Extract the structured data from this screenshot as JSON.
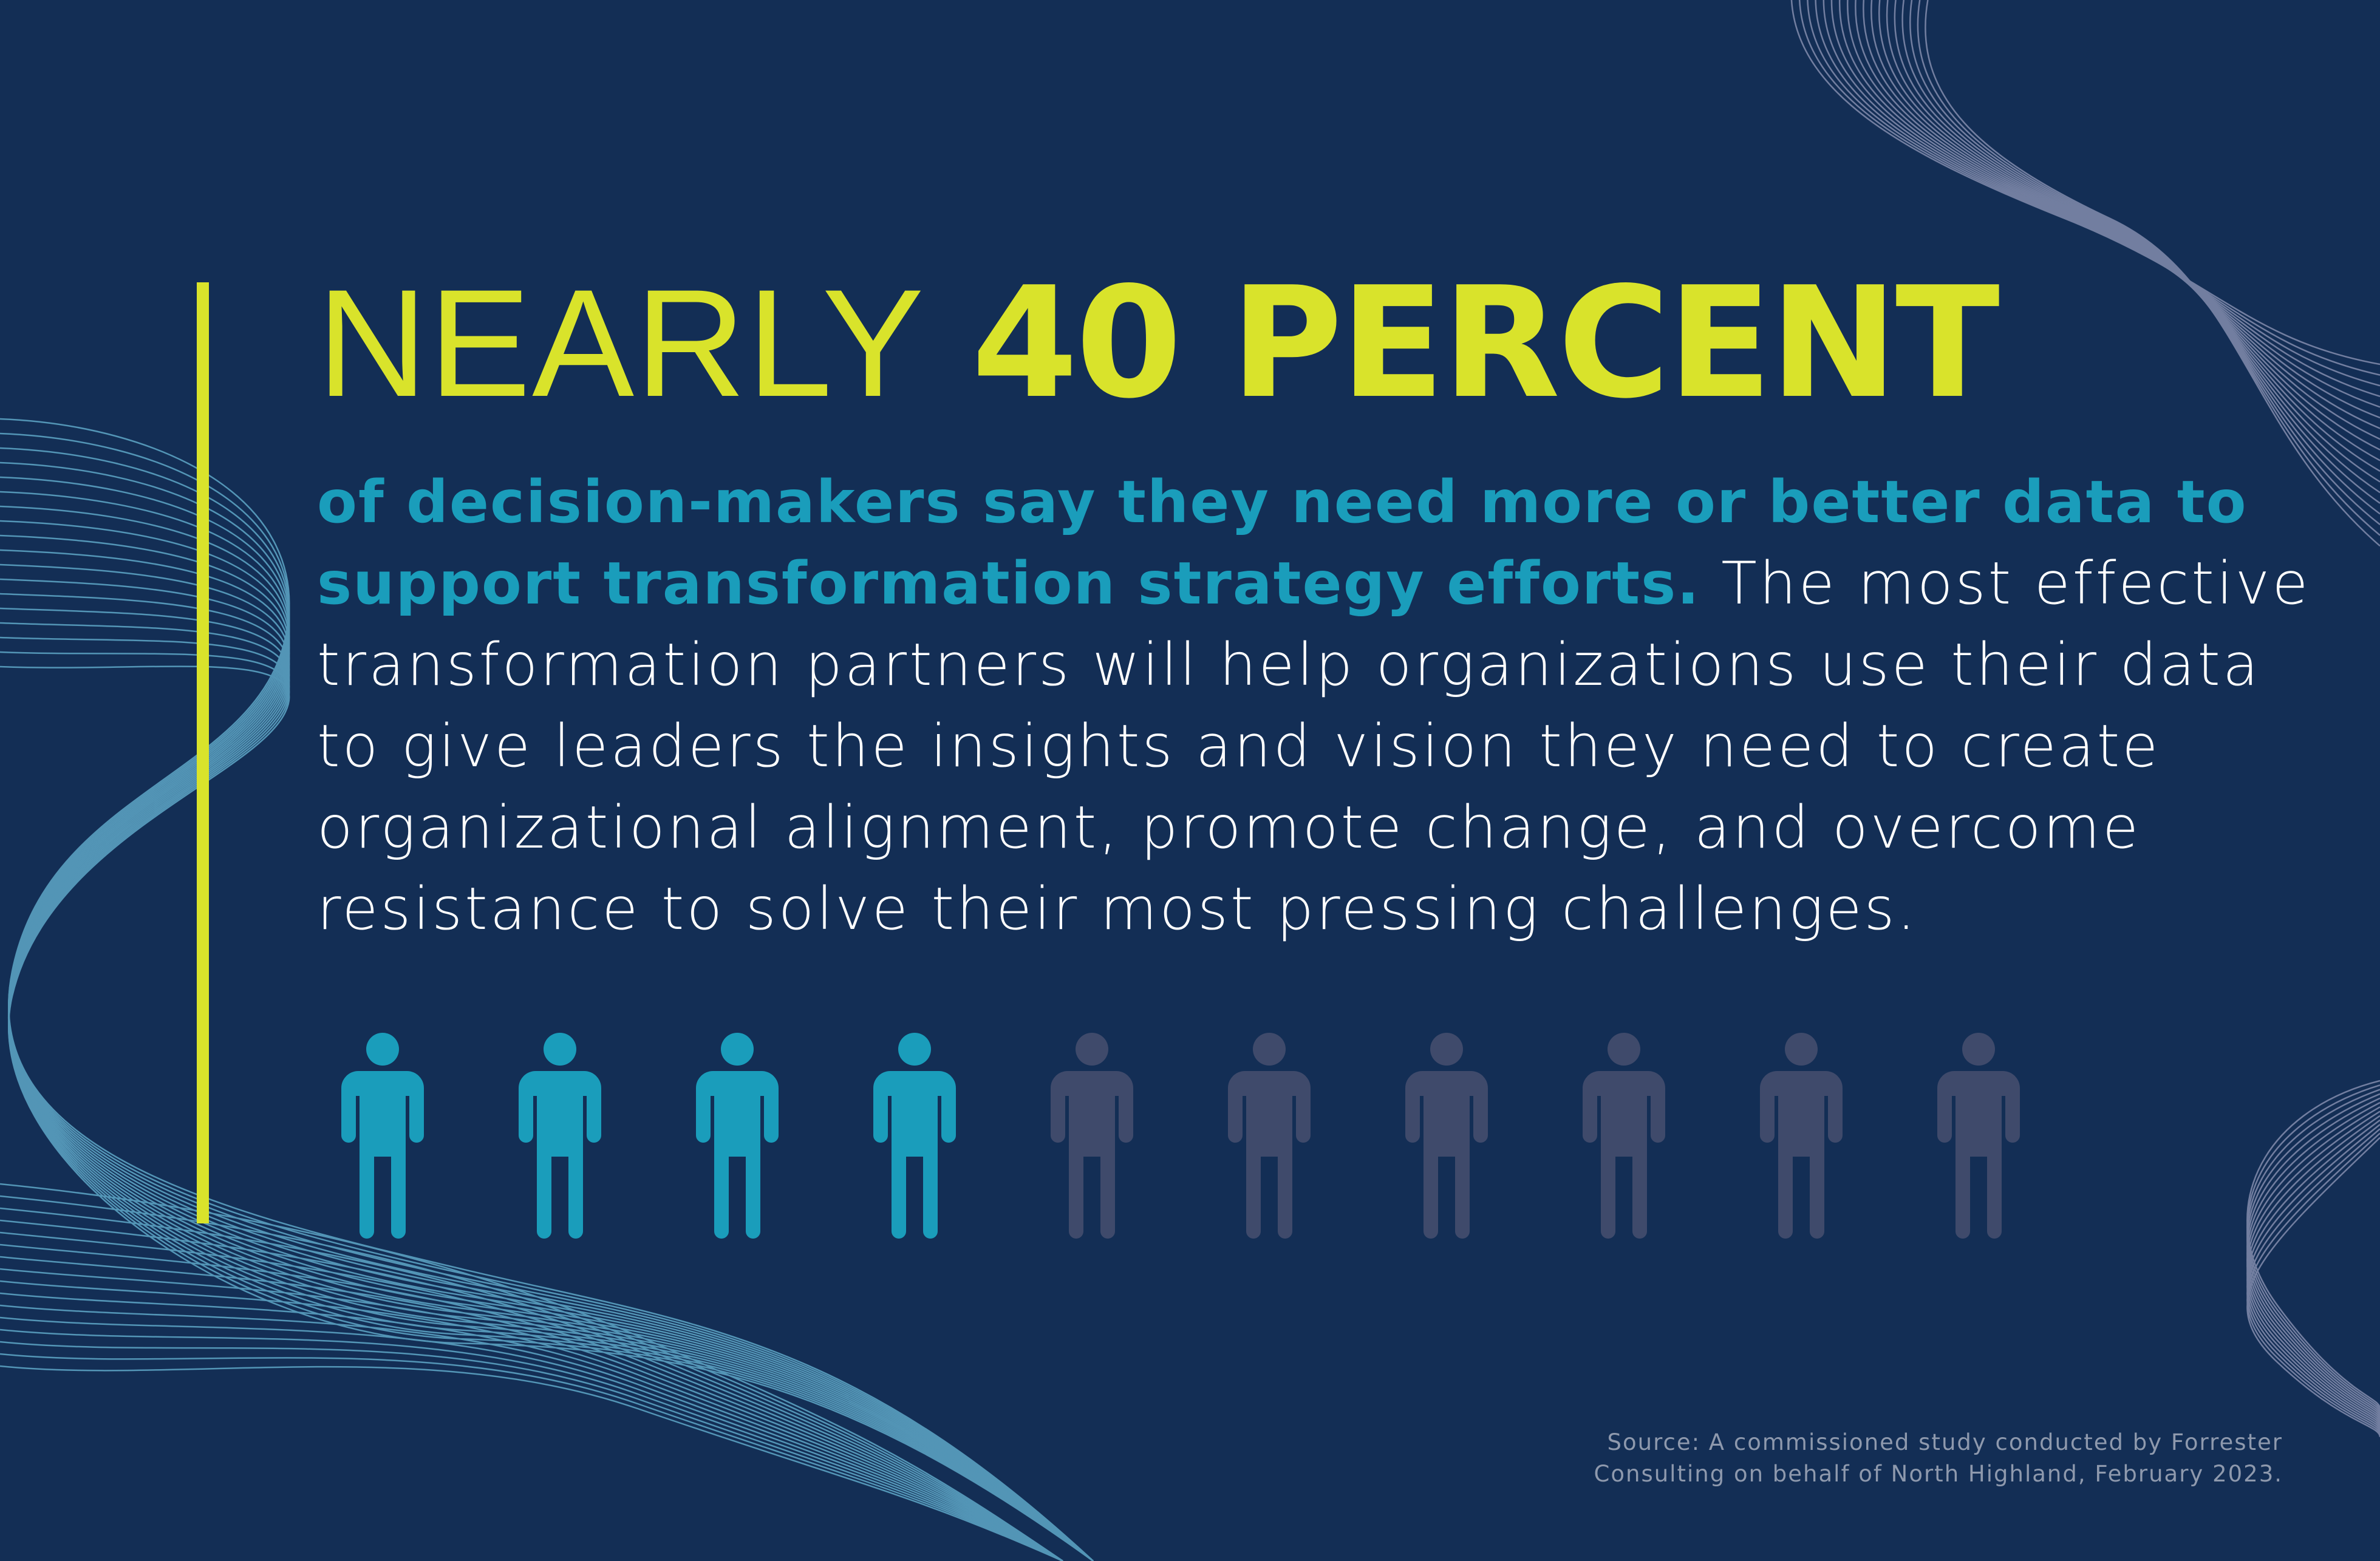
{
  "headline": {
    "light": "NEARLY",
    "bold": "40 PERCENT"
  },
  "body": {
    "highlight": "of decision-makers say they need more or better data to support transformation strategy efforts.",
    "rest": "The most effective transformation partners will help organizations use their data to give leaders the insights and vision they need to create organizational alignment, promote change, and overcome resistance to solve their most pressing challenges."
  },
  "pictogram": {
    "total": 10,
    "highlighted": 4
  },
  "source": {
    "line1": "Source: A commissioned study conducted by Forrester",
    "line2": "Consulting on behalf of North Highland, February 2023."
  },
  "colors": {
    "background": "#132e55",
    "accent_yellow": "#d9e32b",
    "accent_teal": "#1a9dbb",
    "muted_person": "#3f4a6b"
  }
}
